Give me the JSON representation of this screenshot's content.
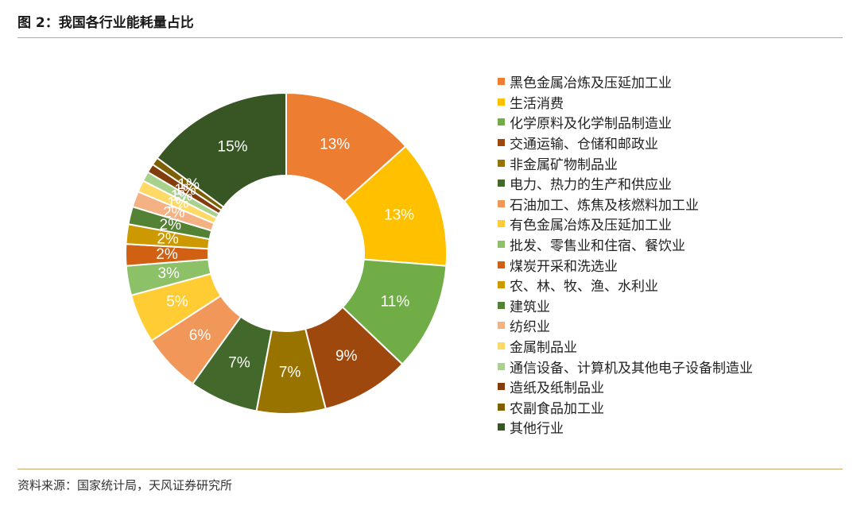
{
  "figure": {
    "title": "图 2：我国各行业能耗量占比",
    "source": "资料来源：国家统计局，天风证券研究所"
  },
  "chart_data": {
    "type": "pie",
    "subtype": "donut",
    "legend_position": "right",
    "categories": [
      "黑色金属冶炼及压延加工业",
      "生活消费",
      "化学原料及化学制品制造业",
      "交通运输、仓储和邮政业",
      "非金属矿物制品业",
      "电力、热力的生产和供应业",
      "石油加工、炼焦及核燃料加工业",
      "有色金属冶炼及压延加工业",
      "批发、零售业和住宿、餐饮业",
      "煤炭开采和洗选业",
      "农、林、牧、渔、水利业",
      "建筑业",
      "纺织业",
      "金属制品业",
      "通信设备、计算机及其他电子设备制造业",
      "造纸及纸制品业",
      "农副食品加工业",
      "其他行业"
    ],
    "values": [
      13.5,
      13.0,
      11.0,
      9.0,
      7.0,
      7.0,
      6.0,
      5.0,
      3.0,
      2.2,
      2.0,
      1.8,
      1.6,
      1.2,
      1.0,
      0.9,
      0.8,
      15.0
    ],
    "data_labels": [
      "13%",
      "13%",
      "11%",
      "9%",
      "7%",
      "7%",
      "6%",
      "5%",
      "3%",
      "2%",
      "2%",
      "2%",
      "2%",
      "1%",
      "1%",
      "1%",
      "1%",
      "15%"
    ],
    "colors": [
      "#ED7D31",
      "#FFC000",
      "#70AD47",
      "#9E480E",
      "#997300",
      "#43682B",
      "#F1975A",
      "#FFCD33",
      "#8CC168",
      "#D26012",
      "#CC9A00",
      "#548235",
      "#F4B183",
      "#FFD966",
      "#A9D18E",
      "#843C0C",
      "#7F6000",
      "#375623"
    ]
  }
}
